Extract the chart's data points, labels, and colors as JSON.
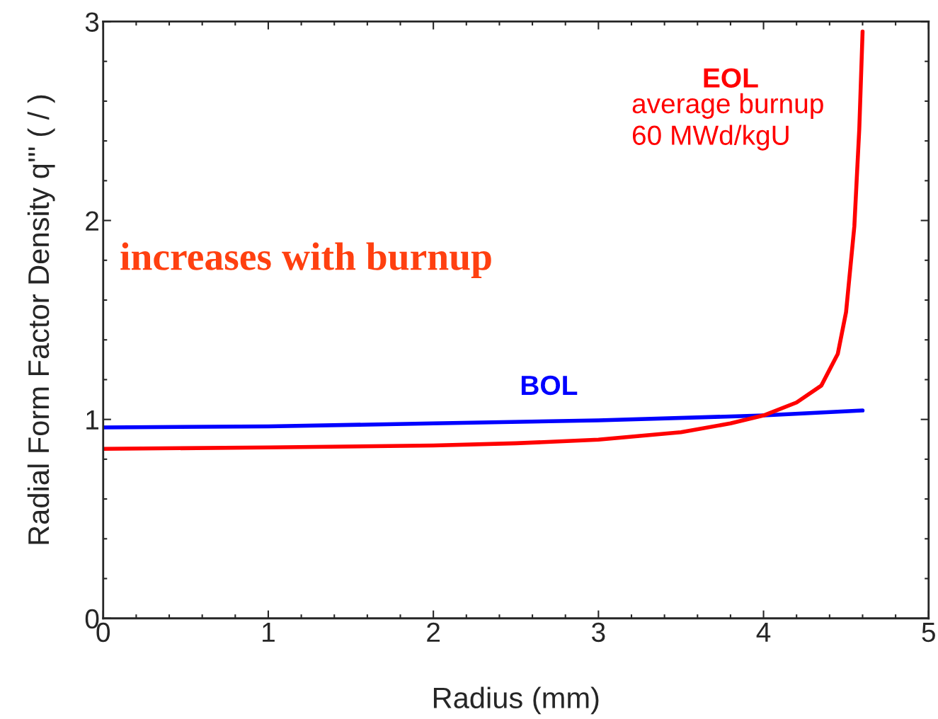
{
  "chart_data": {
    "type": "line",
    "xlabel": "Radius (mm)",
    "ylabel": "Radial Form Factor Density q''' ( / )",
    "xlim": [
      0,
      5
    ],
    "xticks": [
      0,
      1,
      2,
      3,
      4,
      5
    ],
    "ylim": [
      0,
      3
    ],
    "yticks": [
      0,
      1,
      2,
      3
    ],
    "grid": false,
    "marker": "none",
    "line_style": "solid",
    "series": [
      {
        "name": "BOL",
        "color": "#0000ff",
        "x": [
          0,
          1,
          2,
          3,
          4,
          4.6
        ],
        "values": [
          0.96,
          0.965,
          0.98,
          0.995,
          1.02,
          1.045
        ]
      },
      {
        "name": "EOL",
        "color": "#ff0000",
        "x": [
          0,
          1,
          2,
          2.5,
          3,
          3.5,
          3.8,
          4,
          4.2,
          4.35,
          4.45,
          4.5,
          4.55,
          4.58,
          4.6
        ],
        "values": [
          0.852,
          0.859,
          0.869,
          0.88,
          0.898,
          0.936,
          0.98,
          1.02,
          1.085,
          1.17,
          1.33,
          1.54,
          1.97,
          2.46,
          2.95
        ]
      }
    ],
    "annotations": [
      "average burnup\n60 MWd/kgU",
      "increases with burnup"
    ]
  }
}
